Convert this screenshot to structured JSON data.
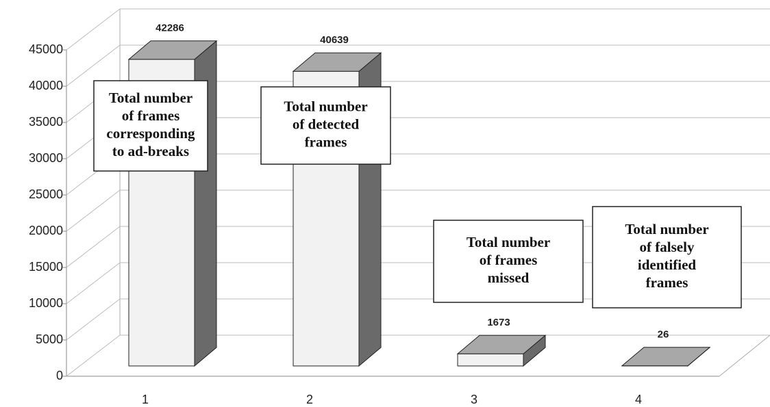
{
  "chart_data": {
    "type": "bar3d",
    "categories": [
      "1",
      "2",
      "3",
      "4"
    ],
    "values": [
      42286,
      40639,
      1673,
      26
    ],
    "ylim": [
      0,
      45000
    ],
    "yticks": [
      0,
      5000,
      10000,
      15000,
      20000,
      25000,
      30000,
      35000,
      40000,
      45000
    ],
    "grid": true,
    "colors": {
      "front": "#f2f2f2",
      "top": "#a8a8a8",
      "side": "#6a6a6a"
    },
    "annotations": [
      [
        "Total number",
        "of frames",
        "corresponding",
        "to ad-breaks"
      ],
      [
        "Total number",
        "of detected",
        "frames"
      ],
      [
        "Total number",
        "of frames",
        "missed"
      ],
      [
        "Total number",
        "of falsely",
        "identified",
        "frames"
      ]
    ]
  }
}
